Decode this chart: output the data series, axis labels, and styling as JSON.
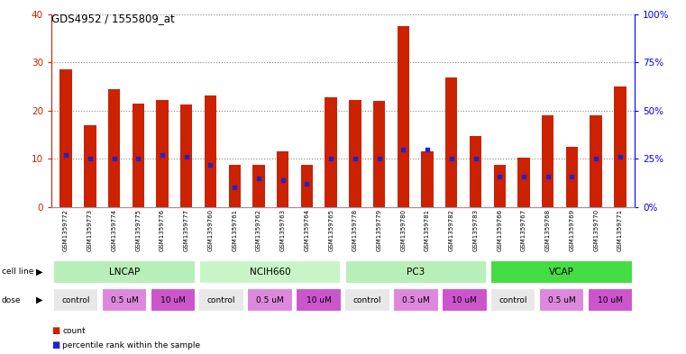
{
  "title": "GDS4952 / 1555809_at",
  "samples": [
    "GSM1359772",
    "GSM1359773",
    "GSM1359774",
    "GSM1359775",
    "GSM1359776",
    "GSM1359777",
    "GSM1359760",
    "GSM1359761",
    "GSM1359762",
    "GSM1359763",
    "GSM1359764",
    "GSM1359765",
    "GSM1359778",
    "GSM1359779",
    "GSM1359780",
    "GSM1359781",
    "GSM1359782",
    "GSM1359783",
    "GSM1359766",
    "GSM1359767",
    "GSM1359768",
    "GSM1359769",
    "GSM1359770",
    "GSM1359771"
  ],
  "counts": [
    28.5,
    17.0,
    24.5,
    21.5,
    22.2,
    21.2,
    23.2,
    8.8,
    8.8,
    11.5,
    8.8,
    22.8,
    22.2,
    22.0,
    37.5,
    11.5,
    26.8,
    14.8,
    8.8,
    10.2,
    19.0,
    12.5,
    19.0,
    25.0
  ],
  "percentile_ranks": [
    27,
    25,
    25,
    25,
    27,
    26,
    22,
    10,
    15,
    14,
    12,
    25,
    25,
    25,
    30,
    30,
    25,
    25,
    16,
    16,
    16,
    16,
    25,
    26
  ],
  "cell_lines": [
    {
      "name": "LNCAP",
      "start": 0,
      "end": 6,
      "color": "#B8EEB8"
    },
    {
      "name": "NCIH660",
      "start": 6,
      "end": 12,
      "color": "#C8F5C8"
    },
    {
      "name": "PC3",
      "start": 12,
      "end": 18,
      "color": "#B8EEB8"
    },
    {
      "name": "VCAP",
      "start": 18,
      "end": 24,
      "color": "#44DD44"
    }
  ],
  "doses": [
    {
      "label": "control",
      "start": 0,
      "end": 2,
      "color": "#E8E8E8"
    },
    {
      "label": "0.5 uM",
      "start": 2,
      "end": 4,
      "color": "#DD88DD"
    },
    {
      "label": "10 uM",
      "start": 4,
      "end": 6,
      "color": "#CC55CC"
    },
    {
      "label": "control",
      "start": 6,
      "end": 8,
      "color": "#E8E8E8"
    },
    {
      "label": "0.5 uM",
      "start": 8,
      "end": 10,
      "color": "#DD88DD"
    },
    {
      "label": "10 uM",
      "start": 10,
      "end": 12,
      "color": "#CC55CC"
    },
    {
      "label": "control",
      "start": 12,
      "end": 14,
      "color": "#E8E8E8"
    },
    {
      "label": "0.5 uM",
      "start": 14,
      "end": 16,
      "color": "#DD88DD"
    },
    {
      "label": "10 uM",
      "start": 16,
      "end": 18,
      "color": "#CC55CC"
    },
    {
      "label": "control",
      "start": 18,
      "end": 20,
      "color": "#E8E8E8"
    },
    {
      "label": "0.5 uM",
      "start": 20,
      "end": 22,
      "color": "#DD88DD"
    },
    {
      "label": "10 uM",
      "start": 22,
      "end": 24,
      "color": "#CC55CC"
    }
  ],
  "ylim_left": [
    0,
    40
  ],
  "ylim_right": [
    0,
    100
  ],
  "yticks_left": [
    0,
    10,
    20,
    30,
    40
  ],
  "yticks_right": [
    0,
    25,
    50,
    75,
    100
  ],
  "bar_color": "#CC2200",
  "marker_color": "#2222CC",
  "bg_color": "#FFFFFF",
  "plot_bg": "#FFFFFF",
  "grid_color": "#888888",
  "bar_width": 0.5,
  "label_bg": "#CCCCCC"
}
